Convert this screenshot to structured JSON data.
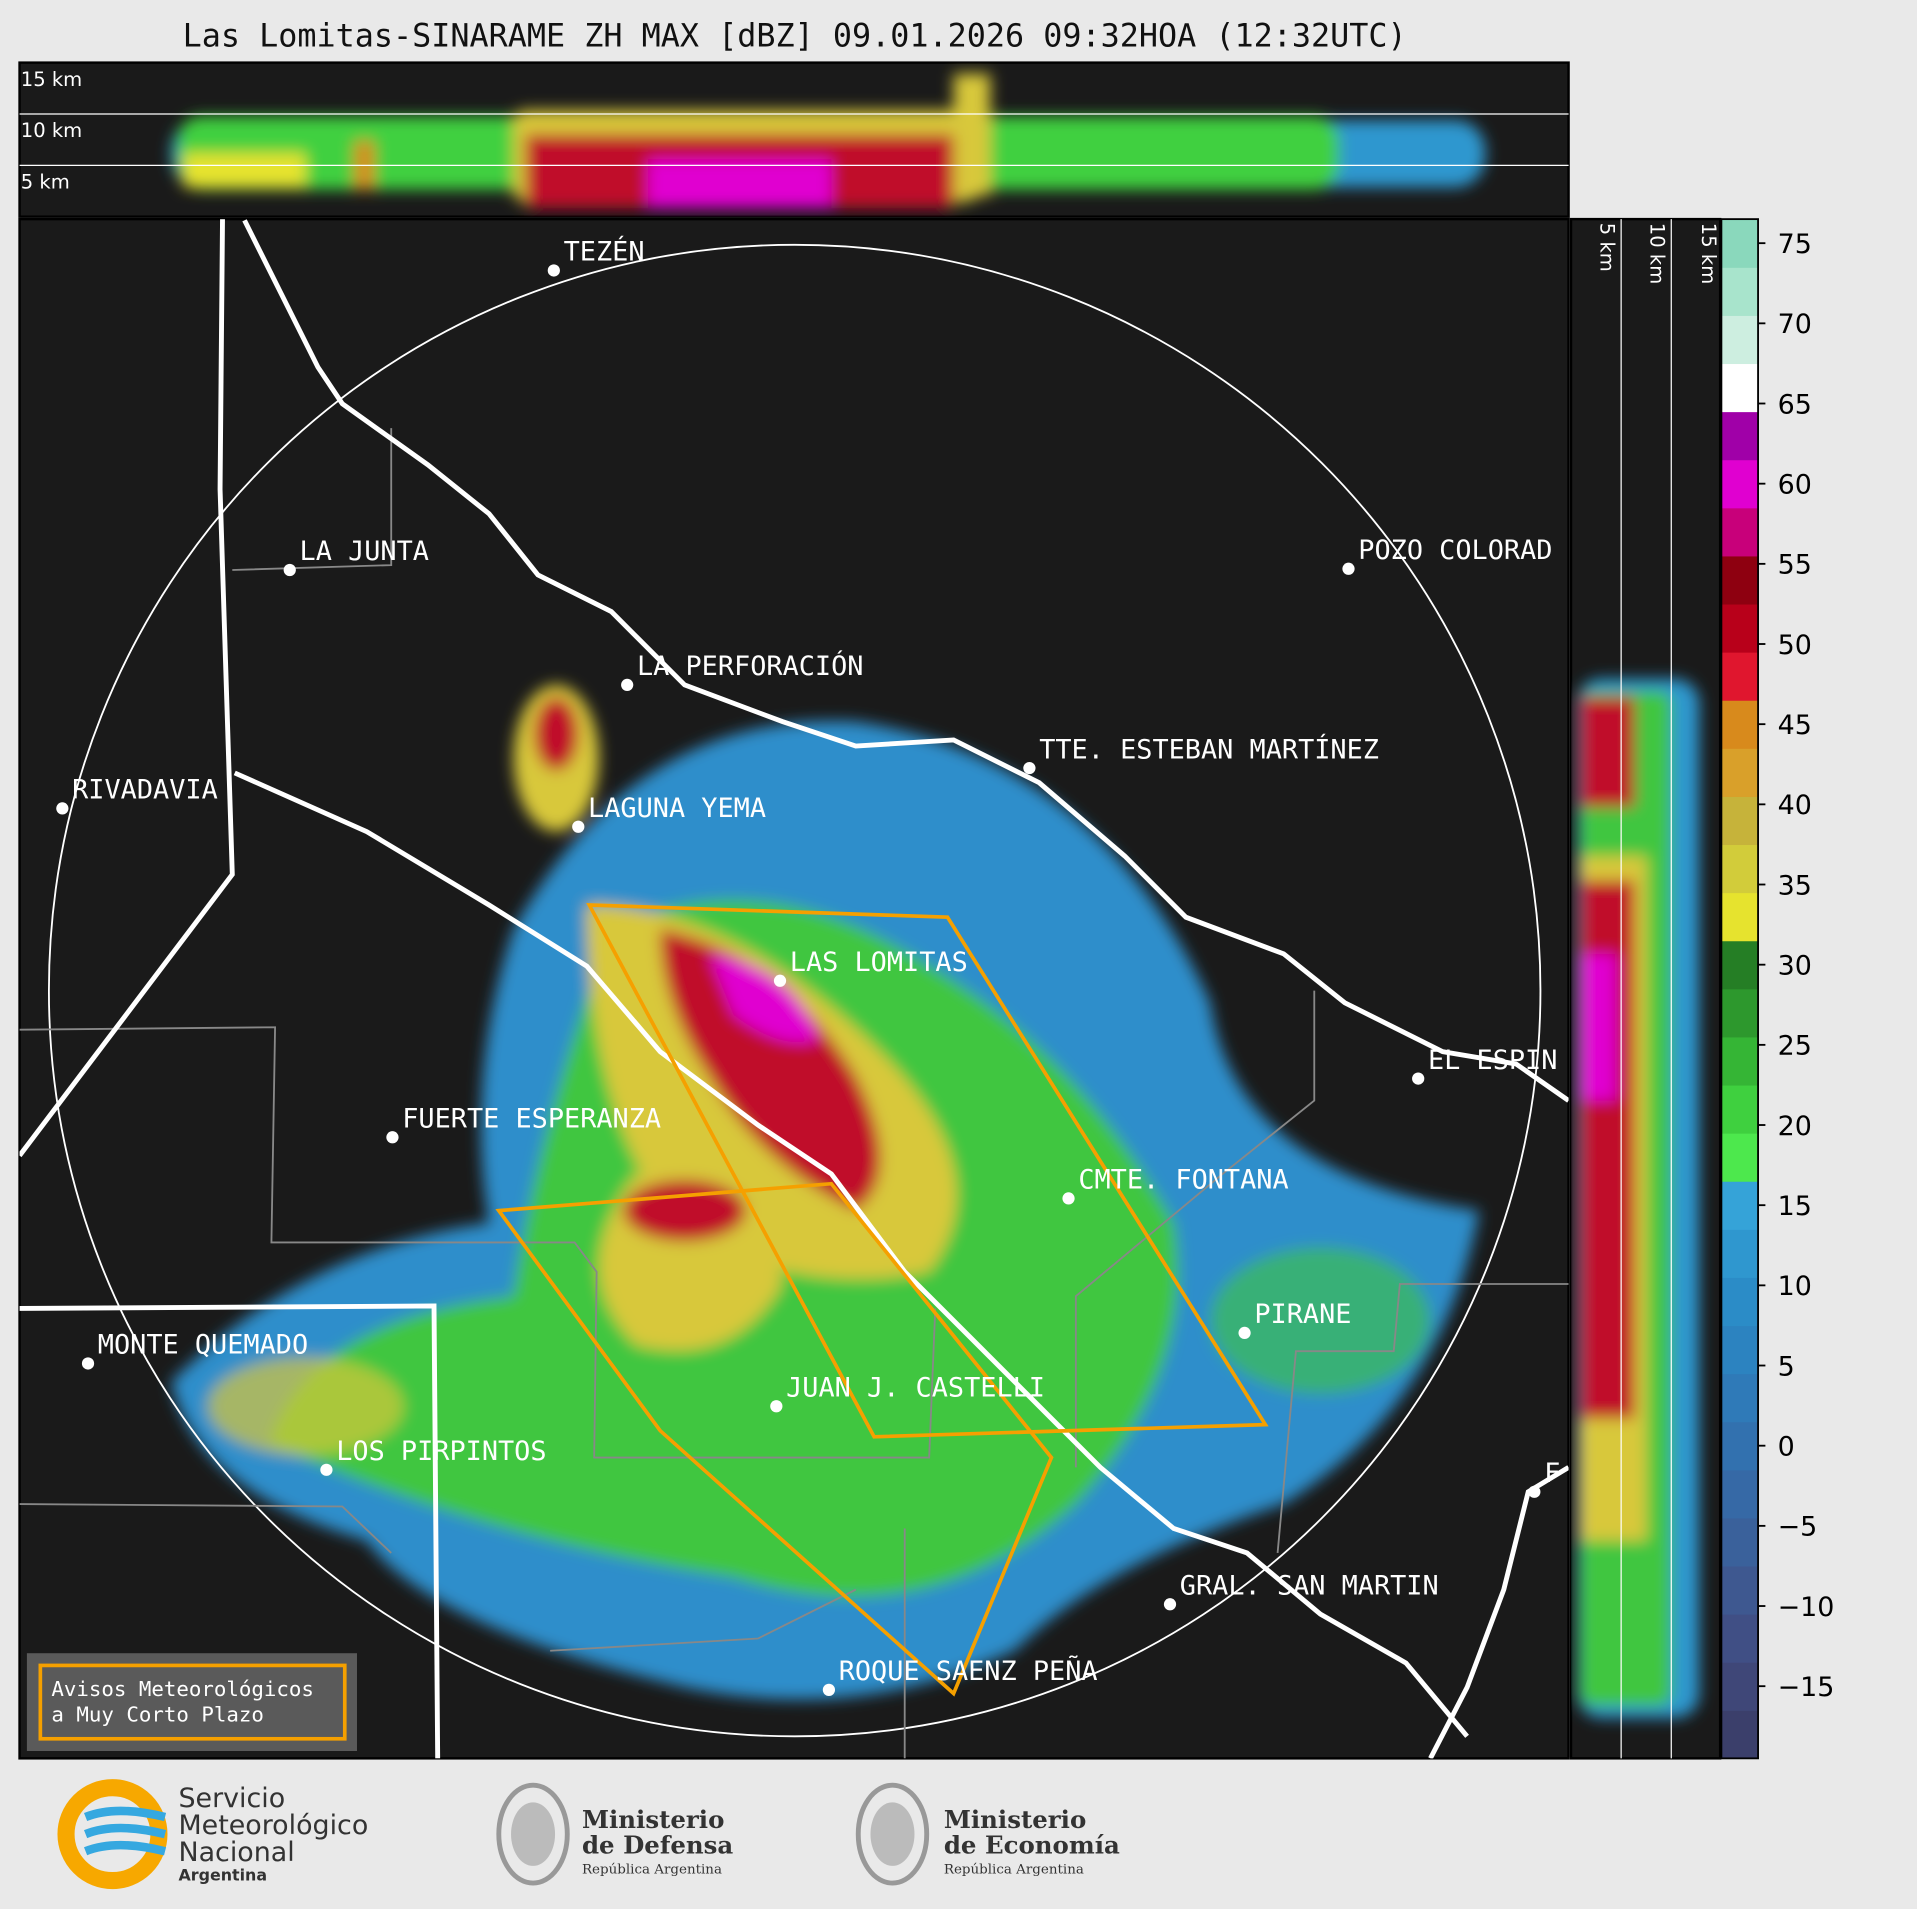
{
  "title": "Las Lomitas-SINARAME ZH MAX [dBZ] 09.01.2026 09:32HOA (12:32UTC)",
  "height_labels_top": [
    "15 km",
    "10 km",
    "5 km"
  ],
  "height_labels_side": [
    "5 km",
    "10 km",
    "15 km"
  ],
  "places": [
    "TEZÉN",
    "LA JUNTA",
    "POZO COLORAD",
    "LA PERFORACIÓN",
    "TTE. ESTEBAN MARTÍNEZ",
    "RIVADAVIA",
    "LAGUNA YEMA",
    "LAS LOMITAS",
    "EL ESPIN",
    "FUERTE ESPERANZA",
    "CMTE. FONTANA",
    "PIRANE",
    "MONTE QUEMADO",
    "JUAN J. CASTELLI",
    "LOS PIRPINTOS",
    "GRAL. SAN MARTIN",
    "ROQUE SAENZ PEÑA",
    "F"
  ],
  "colorbar": {
    "lim": [
      -19.5,
      76.5
    ],
    "ticks": [
      75,
      70,
      65,
      60,
      55,
      50,
      45,
      40,
      35,
      30,
      25,
      20,
      15,
      10,
      5,
      0,
      {
        "value": -5,
        "label": "−5"
      },
      {
        "value": -10,
        "label": "−10"
      },
      {
        "value": -15,
        "label": "−15"
      }
    ],
    "colors": [
      "#3b3f6b",
      "#3f4778",
      "#404f85",
      "#3e5890",
      "#3a619b",
      "#3669a6",
      "#3271af",
      "#2f7ab8",
      "#2c83c0",
      "#2b8cc7",
      "#2f97cf",
      "#35a3d8",
      "#4de84d",
      "#3fd03f",
      "#35b535",
      "#2d982d",
      "#257e25",
      "#e6e32e",
      "#d2cc3a",
      "#c6b33a",
      "#d9a02a",
      "#d88a1c",
      "#e0162e",
      "#b8001a",
      "#8e0010",
      "#c8007a",
      "#e000d0",
      "#a000a8",
      "#ffffff",
      "#cdeee0",
      "#a8e4cc",
      "#8ad8bc"
    ]
  },
  "warning": [
    "Avisos Meteorológicos",
    "a Muy Corto Plazo"
  ],
  "logos": {
    "smn": [
      "Servicio",
      "Meteorológico",
      "Nacional",
      "Argentina"
    ],
    "defensa": [
      "Ministerio",
      "de Defensa",
      "República Argentina"
    ],
    "economia": [
      "Ministerio",
      "de Economía",
      "República Argentina"
    ]
  }
}
